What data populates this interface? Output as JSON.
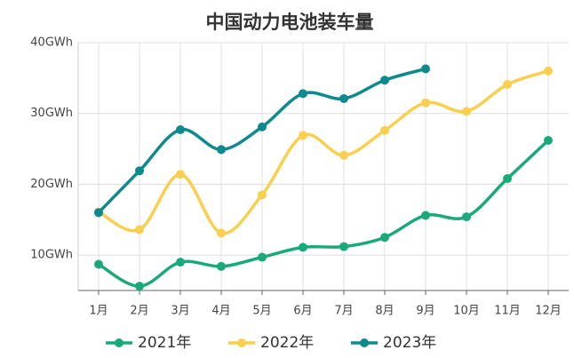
{
  "chart_data": {
    "type": "line",
    "title": "中国动力电池装车量",
    "categories": [
      "1月",
      "2月",
      "3月",
      "4月",
      "5月",
      "6月",
      "7月",
      "8月",
      "9月",
      "10月",
      "11月",
      "12月"
    ],
    "series": [
      {
        "name": "2021年",
        "color": "#1aaa7a",
        "values": [
          8.7,
          5.6,
          9.0,
          8.4,
          9.7,
          11.1,
          11.2,
          12.5,
          15.6,
          15.4,
          20.8,
          26.2
        ]
      },
      {
        "name": "2022年",
        "color": "#f8cf4f",
        "values": [
          16.1,
          13.6,
          21.4,
          13.1,
          18.5,
          26.9,
          24.1,
          27.6,
          31.5,
          30.3,
          34.1,
          36.0
        ]
      },
      {
        "name": "2023年",
        "color": "#0e8a8f",
        "values": [
          16.0,
          21.9,
          27.7,
          24.9,
          28.1,
          32.8,
          32.1,
          34.7,
          36.3,
          null,
          null,
          null
        ]
      }
    ],
    "ylim": [
      5,
      40
    ],
    "yticks": [
      {
        "value": 10,
        "label": "10GWh"
      },
      {
        "value": 20,
        "label": "20GWh"
      },
      {
        "value": 30,
        "label": "30GWh"
      },
      {
        "value": 40,
        "label": "40GWh"
      }
    ],
    "grid": true,
    "legend": "bottom"
  }
}
